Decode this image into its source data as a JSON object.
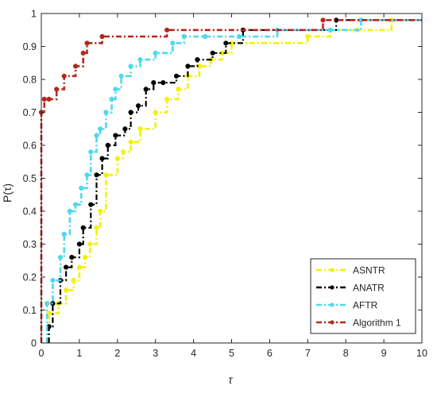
{
  "chart_data": {
    "type": "line",
    "style": "step",
    "xlabel": "τ",
    "ylabel": "P(τ)",
    "xlim": [
      0,
      10
    ],
    "ylim": [
      0,
      1
    ],
    "xticks": [
      0,
      1,
      2,
      3,
      4,
      5,
      6,
      7,
      8,
      9,
      10
    ],
    "yticks": [
      0,
      0.1,
      0.2,
      0.3,
      0.4,
      0.5,
      0.6,
      0.7,
      0.8,
      0.9,
      1
    ],
    "xtick_labels": [
      "0",
      "1",
      "2",
      "3",
      "4",
      "5",
      "6",
      "7",
      "8",
      "9",
      "10"
    ],
    "ytick_labels": [
      "0",
      "0.1",
      "0.2",
      "0.3",
      "0.4",
      "0.5",
      "0.6",
      "0.7",
      "0.8",
      "0.9",
      "1"
    ],
    "grid": false,
    "legend_position": "bottom-right",
    "series": [
      {
        "name": "ASNTR",
        "color": "#f2f20a",
        "marker": "dot",
        "line": "dash-dot",
        "x": [
          0.2,
          0.45,
          0.65,
          0.85,
          1.0,
          1.15,
          1.28,
          1.45,
          1.55,
          1.7,
          2.0,
          2.15,
          2.35,
          2.6,
          3.0,
          3.3,
          3.6,
          3.85,
          4.15,
          4.45,
          4.75,
          5.0,
          7.0,
          7.6,
          8.3,
          9.2
        ],
        "y": [
          0.09,
          0.12,
          0.16,
          0.19,
          0.23,
          0.26,
          0.3,
          0.35,
          0.4,
          0.51,
          0.56,
          0.58,
          0.61,
          0.65,
          0.7,
          0.74,
          0.77,
          0.81,
          0.84,
          0.86,
          0.88,
          0.91,
          0.93,
          0.95,
          0.95,
          0.98
        ]
      },
      {
        "name": "ANATR",
        "color": "#000000",
        "marker": "dot",
        "line": "dash-dot",
        "x": [
          0.2,
          0.3,
          0.5,
          0.65,
          0.8,
          1.0,
          1.1,
          1.3,
          1.45,
          1.6,
          1.75,
          1.95,
          2.2,
          2.35,
          2.55,
          2.75,
          2.95,
          3.2,
          3.55,
          3.85,
          4.1,
          4.5,
          4.85,
          5.3,
          7.75
        ],
        "y": [
          0.05,
          0.12,
          0.19,
          0.23,
          0.26,
          0.3,
          0.35,
          0.42,
          0.51,
          0.56,
          0.6,
          0.63,
          0.65,
          0.7,
          0.72,
          0.77,
          0.79,
          0.79,
          0.81,
          0.84,
          0.86,
          0.88,
          0.91,
          0.95,
          0.98
        ]
      },
      {
        "name": "AFTR",
        "color": "#4fd8ee",
        "marker": "dot",
        "line": "dash-dot",
        "x": [
          0.15,
          0.3,
          0.5,
          0.6,
          0.75,
          0.9,
          1.05,
          1.2,
          1.3,
          1.45,
          1.55,
          1.7,
          1.85,
          1.95,
          2.1,
          2.35,
          2.6,
          3.0,
          3.45,
          3.75,
          4.3,
          5.2,
          6.2,
          7.6,
          8.4
        ],
        "y": [
          0.12,
          0.19,
          0.26,
          0.33,
          0.4,
          0.42,
          0.47,
          0.51,
          0.58,
          0.63,
          0.65,
          0.7,
          0.74,
          0.77,
          0.81,
          0.84,
          0.86,
          0.88,
          0.91,
          0.93,
          0.93,
          0.93,
          0.95,
          0.95,
          0.98
        ]
      },
      {
        "name": "Algorithm 1",
        "color": "#b5281e",
        "marker": "dot",
        "line": "dash-dot",
        "x": [
          0,
          0.08,
          0.2,
          0.4,
          0.6,
          0.9,
          1.1,
          1.2,
          1.6,
          3.3,
          7.4
        ],
        "y": [
          0.7,
          0.74,
          0.74,
          0.77,
          0.81,
          0.84,
          0.88,
          0.91,
          0.93,
          0.95,
          0.98
        ]
      }
    ]
  }
}
